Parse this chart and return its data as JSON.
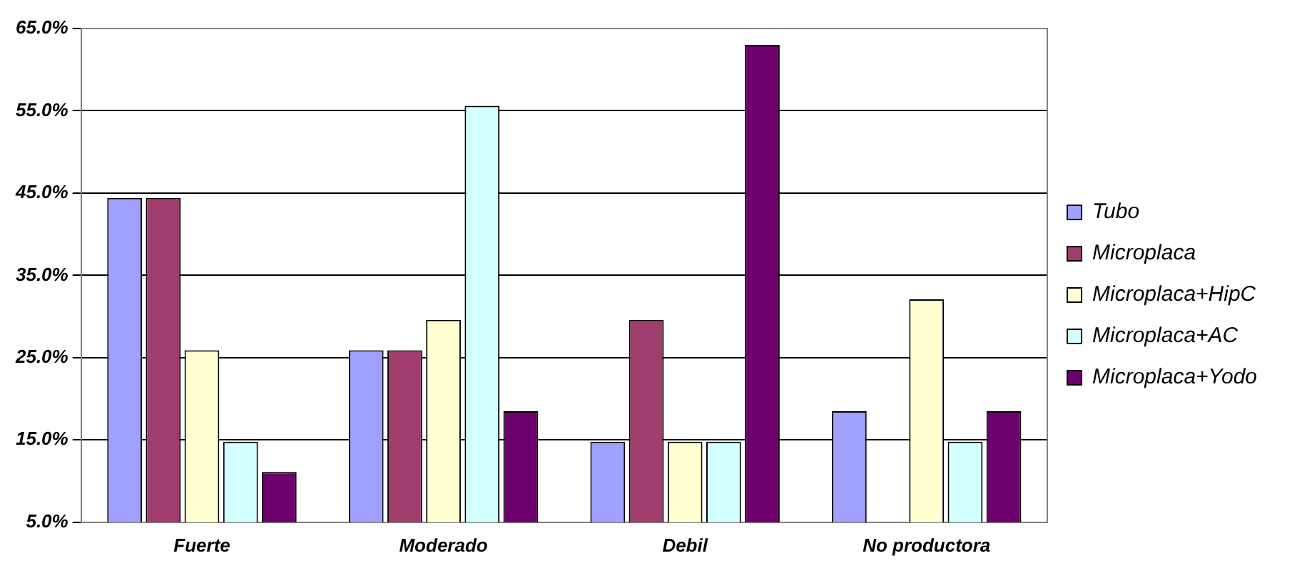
{
  "chart_data": {
    "type": "bar",
    "categories": [
      "Fuerte",
      "Moderado",
      "Debil",
      "No productora"
    ],
    "series": [
      {
        "name": "Tubo",
        "color": "#a0a0ff",
        "values": [
          44.4,
          25.9,
          14.8,
          18.5
        ]
      },
      {
        "name": "Microplaca",
        "color": "#a03c6e",
        "values": [
          44.4,
          25.9,
          29.6,
          null
        ]
      },
      {
        "name": "Microplaca+HipC",
        "color": "#ffffd2",
        "values": [
          25.9,
          29.6,
          14.8,
          32.1
        ]
      },
      {
        "name": "Microplaca+AC",
        "color": "#d2ffff",
        "values": [
          14.8,
          55.6,
          14.8,
          14.8
        ]
      },
      {
        "name": "Microplaca+Yodo",
        "color": "#6e006e",
        "values": [
          11.1,
          18.5,
          63.0,
          18.5
        ]
      }
    ],
    "ylim": [
      5,
      65
    ],
    "yticks": [
      {
        "value": 5,
        "label": "5.0%"
      },
      {
        "value": 15,
        "label": "15.0%"
      },
      {
        "value": 25,
        "label": "25.0%"
      },
      {
        "value": 35,
        "label": "35.0%"
      },
      {
        "value": 45,
        "label": "45.0%"
      },
      {
        "value": 55,
        "label": "55.0%"
      },
      {
        "value": 65,
        "label": "65.0%"
      }
    ],
    "grid": "y",
    "legend": "right"
  }
}
